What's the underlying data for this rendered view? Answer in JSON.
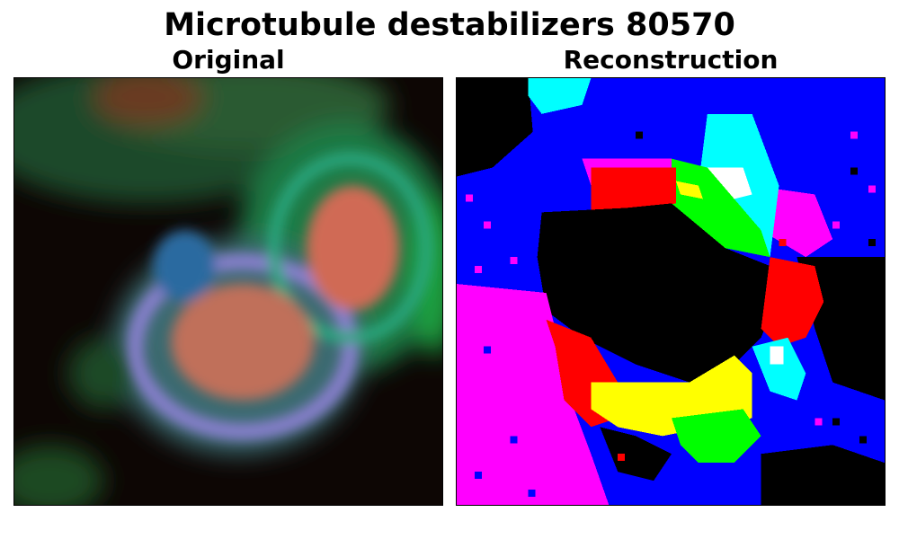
{
  "figure": {
    "title": "Microtubule destabilizers 80570"
  },
  "panels": [
    {
      "title": "Original",
      "description": "blurred fluorescence micrograph of cells; red nuclei with green/blue cytoplasm on dark background"
    },
    {
      "title": "Reconstruction",
      "description": "pixelated segmentation-like map with saturated blue, magenta, red, yellow, green, cyan and black regions"
    }
  ],
  "colors": {
    "background": "#ffffff",
    "text": "#000000",
    "recon_blue": "#0000ff",
    "recon_magenta": "#ff00ff",
    "recon_red": "#ff0000",
    "recon_yellow": "#ffff00",
    "recon_green": "#00ff00",
    "recon_cyan": "#00ffff",
    "recon_black": "#000000"
  }
}
